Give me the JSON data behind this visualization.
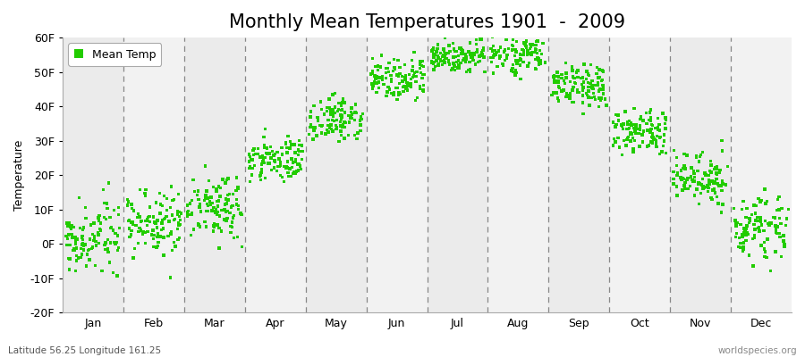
{
  "title": "Monthly Mean Temperatures 1901  -  2009",
  "ylabel": "Temperature",
  "subtitle_left": "Latitude 56.25 Longitude 161.25",
  "subtitle_right": "worldspecies.org",
  "legend_label": "Mean Temp",
  "dot_color": "#22cc00",
  "dot_size": 6,
  "ylim": [
    -20,
    60
  ],
  "yticks": [
    -20,
    -10,
    0,
    10,
    20,
    30,
    40,
    50,
    60
  ],
  "ytick_labels": [
    "-20F",
    "-10F",
    "0F",
    "10F",
    "20F",
    "30F",
    "40F",
    "50F",
    "60F"
  ],
  "months": [
    "Jan",
    "Feb",
    "Mar",
    "Apr",
    "May",
    "Jun",
    "Jul",
    "Aug",
    "Sep",
    "Oct",
    "Nov",
    "Dec"
  ],
  "month_means": [
    2.0,
    5.5,
    11.0,
    24.5,
    36.5,
    47.5,
    54.5,
    54.5,
    46.0,
    33.0,
    19.0,
    5.0
  ],
  "month_stds": [
    5.0,
    4.5,
    4.5,
    3.5,
    3.0,
    3.0,
    2.5,
    2.5,
    3.0,
    3.0,
    4.0,
    4.5
  ],
  "n_years": 109,
  "bg_colors": [
    "#ebebeb",
    "#f5f5f5"
  ],
  "bg_alt_colors": [
    "#e8e8e8",
    "#f0f0f0"
  ],
  "title_fontsize": 15,
  "axis_fontsize": 9,
  "tick_fontsize": 9,
  "legend_fontsize": 9
}
